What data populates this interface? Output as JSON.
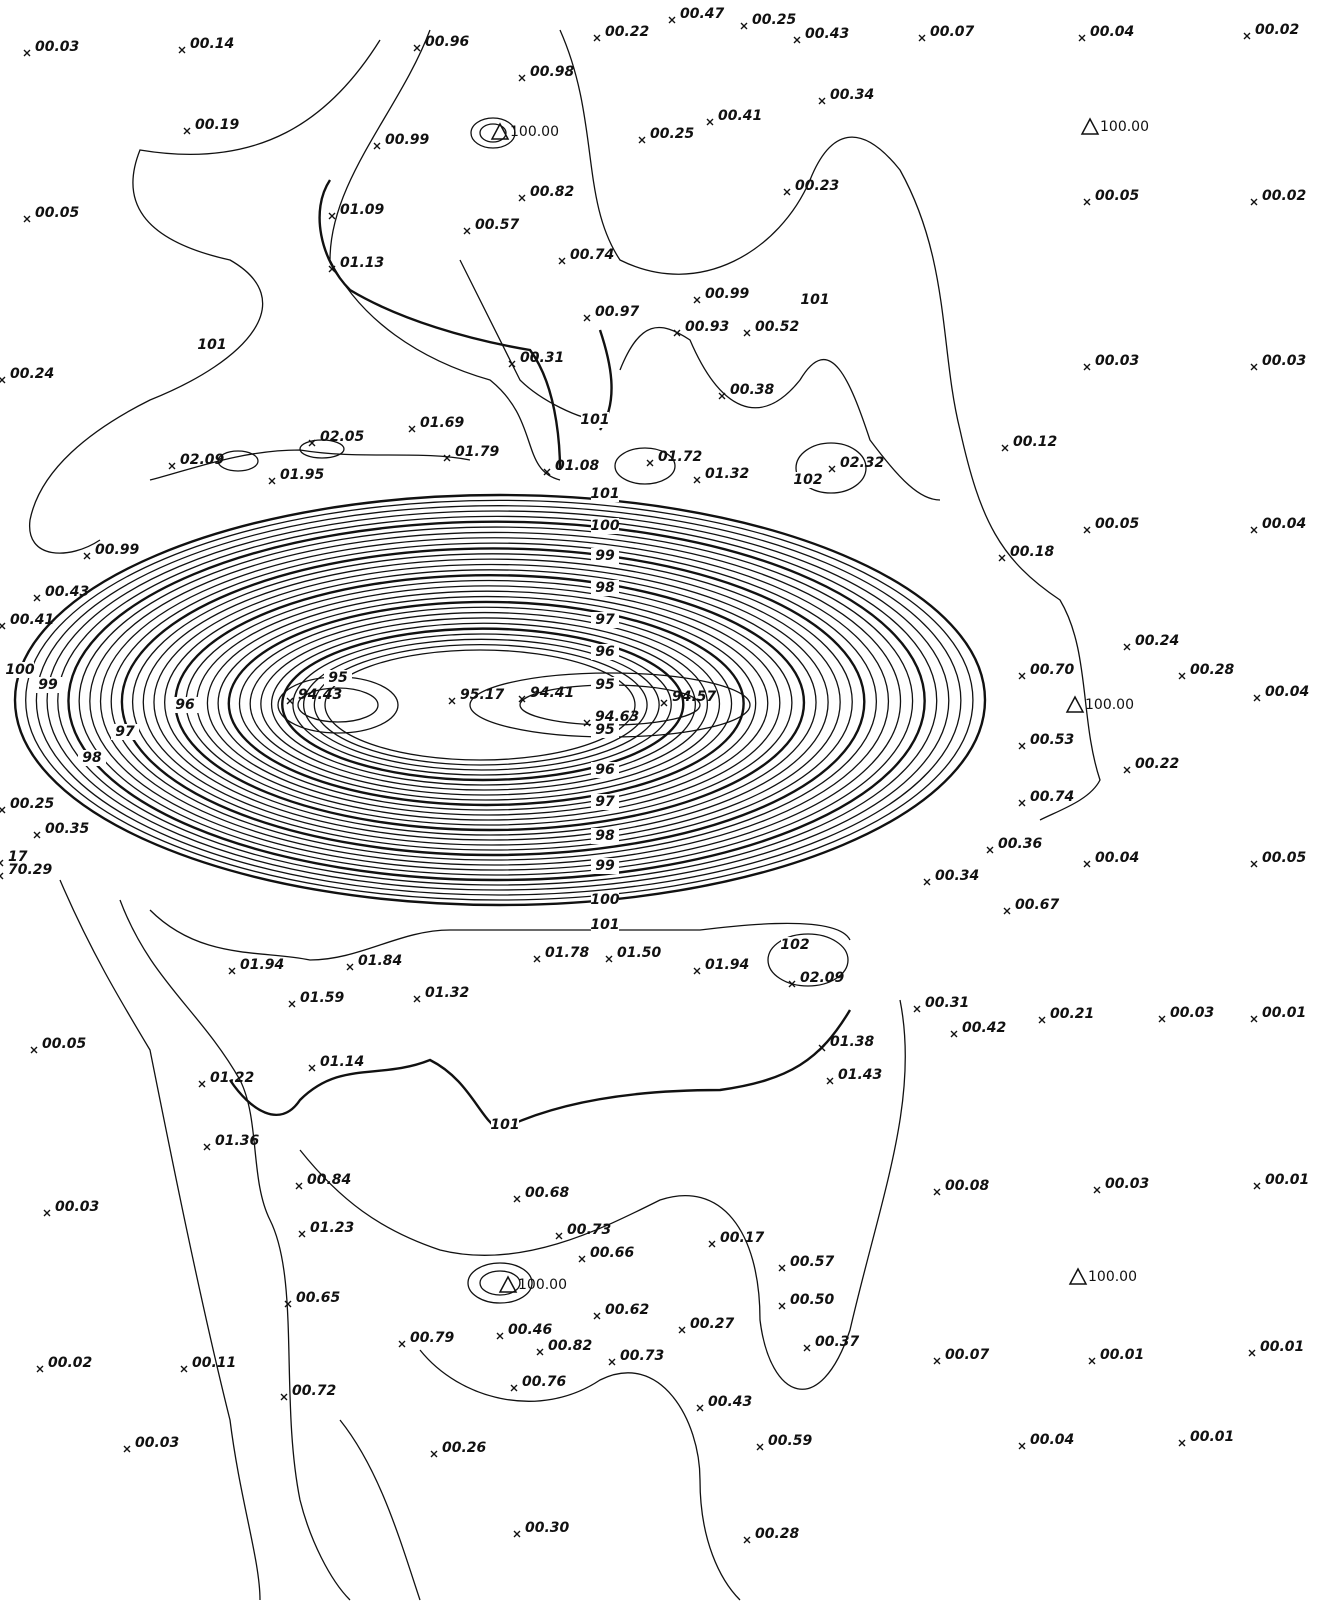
{
  "spot_heights": [
    "00.03",
    "00.14",
    "00.96",
    "00.22",
    "00.47",
    "00.25",
    "00.43",
    "00.07",
    "00.04",
    "00.02",
    "00.98",
    "00.34",
    "00.19",
    "00.99",
    "00.25",
    "00.41",
    "00.05",
    "01.09",
    "00.82",
    "00.57",
    "00.23",
    "00.05",
    "00.02",
    "01.13",
    "00.74",
    "00.99",
    "00.97",
    "00.93",
    "00.52",
    "00.31",
    "00.38",
    "00.24",
    "00.03",
    "00.03",
    "01.69",
    "02.05",
    "02.09",
    "01.95",
    "01.79",
    "01.08",
    "01.72",
    "01.32",
    "02.32",
    "00.12",
    "00.05",
    "00.04",
    "00.99",
    "00.18",
    "00.43",
    "00.41",
    "00.24",
    "00.28",
    "00.70",
    "00.04",
    "94.43",
    "95.17",
    "94.41",
    "94.57",
    "94.63",
    "00.53",
    "00.22",
    "00.74",
    "00.25",
    "00.35",
    "17",
    "00.36",
    "00.04",
    "00.05",
    "70.29",
    "00.34",
    "00.67",
    "01.78",
    "01.50",
    "01.94",
    "01.84",
    "01.94",
    "02.09",
    "01.59",
    "01.32",
    "00.31",
    "00.42",
    "00.21",
    "00.03",
    "00.01",
    "00.05",
    "01.38",
    "01.14",
    "01.22",
    "01.43",
    "01.36",
    "00.84",
    "00.68",
    "00.08",
    "00.03",
    "00.01",
    "00.03",
    "01.23",
    "00.73",
    "00.17",
    "00.66",
    "00.57",
    "00.65",
    "00.50",
    "00.62",
    "00.27",
    "00.46",
    "00.79",
    "00.82",
    "00.37",
    "00.73",
    "00.07",
    "00.01",
    "00.01",
    "00.02",
    "00.11",
    "00.72",
    "00.76",
    "00.43",
    "00.03",
    "00.26",
    "00.59",
    "00.04",
    "00.01",
    "00.30",
    "00.28"
  ],
  "benchmarks": [
    "100.00",
    "100.00",
    "100.00",
    "100.00",
    "100.00"
  ],
  "contour_labels": [
    "101",
    "101",
    "101",
    "102",
    "101",
    "100",
    "99",
    "98",
    "97",
    "96",
    "95",
    "95",
    "95",
    "96",
    "97",
    "98",
    "99",
    "100",
    "96",
    "97",
    "98",
    "99",
    "100",
    "101",
    "102",
    "101"
  ]
}
